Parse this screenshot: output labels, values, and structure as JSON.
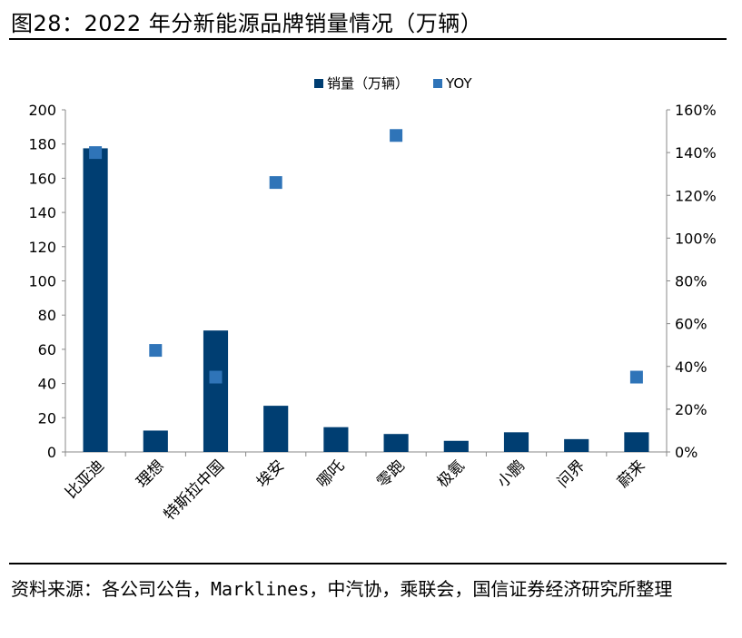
{
  "figure": {
    "title": "图28：2022 年分新能源品牌销量情况（万辆）",
    "source": "资料来源：各公司公告，Marklines，中汽协，乘联会，国信证券经济研究所整理"
  },
  "chart_data": {
    "type": "bar",
    "categories": [
      "比亚迪",
      "理想",
      "特斯拉中国",
      "埃安",
      "哪吒",
      "零跑",
      "极氪",
      "小鹏",
      "问界",
      "蔚来"
    ],
    "series": [
      {
        "name": "销量（万辆）",
        "type": "bar",
        "axis": "left",
        "color": "#003e72",
        "values": [
          177.5,
          12.5,
          71,
          27,
          14.5,
          10.5,
          6.5,
          11.5,
          7.5,
          11.5
        ]
      },
      {
        "name": "YOY",
        "type": "scatter",
        "axis": "right",
        "color": "#2f74b8",
        "values": [
          140,
          47.5,
          35,
          126,
          null,
          148,
          null,
          null,
          null,
          35
        ]
      }
    ],
    "y_left": {
      "lim": [
        0,
        200
      ],
      "ticks": [
        0,
        20,
        40,
        60,
        80,
        100,
        120,
        140,
        160,
        180,
        200
      ],
      "labels": [
        "0",
        "20",
        "40",
        "60",
        "80",
        "100",
        "120",
        "140",
        "160",
        "180",
        "200"
      ]
    },
    "y_right": {
      "lim": [
        0,
        160
      ],
      "ticks": [
        0,
        20,
        40,
        60,
        80,
        100,
        120,
        140,
        160
      ],
      "labels": [
        "0%",
        "20%",
        "40%",
        "60%",
        "80%",
        "100%",
        "120%",
        "140%",
        "160%"
      ]
    },
    "legend_position": "top-center",
    "grid": false
  }
}
